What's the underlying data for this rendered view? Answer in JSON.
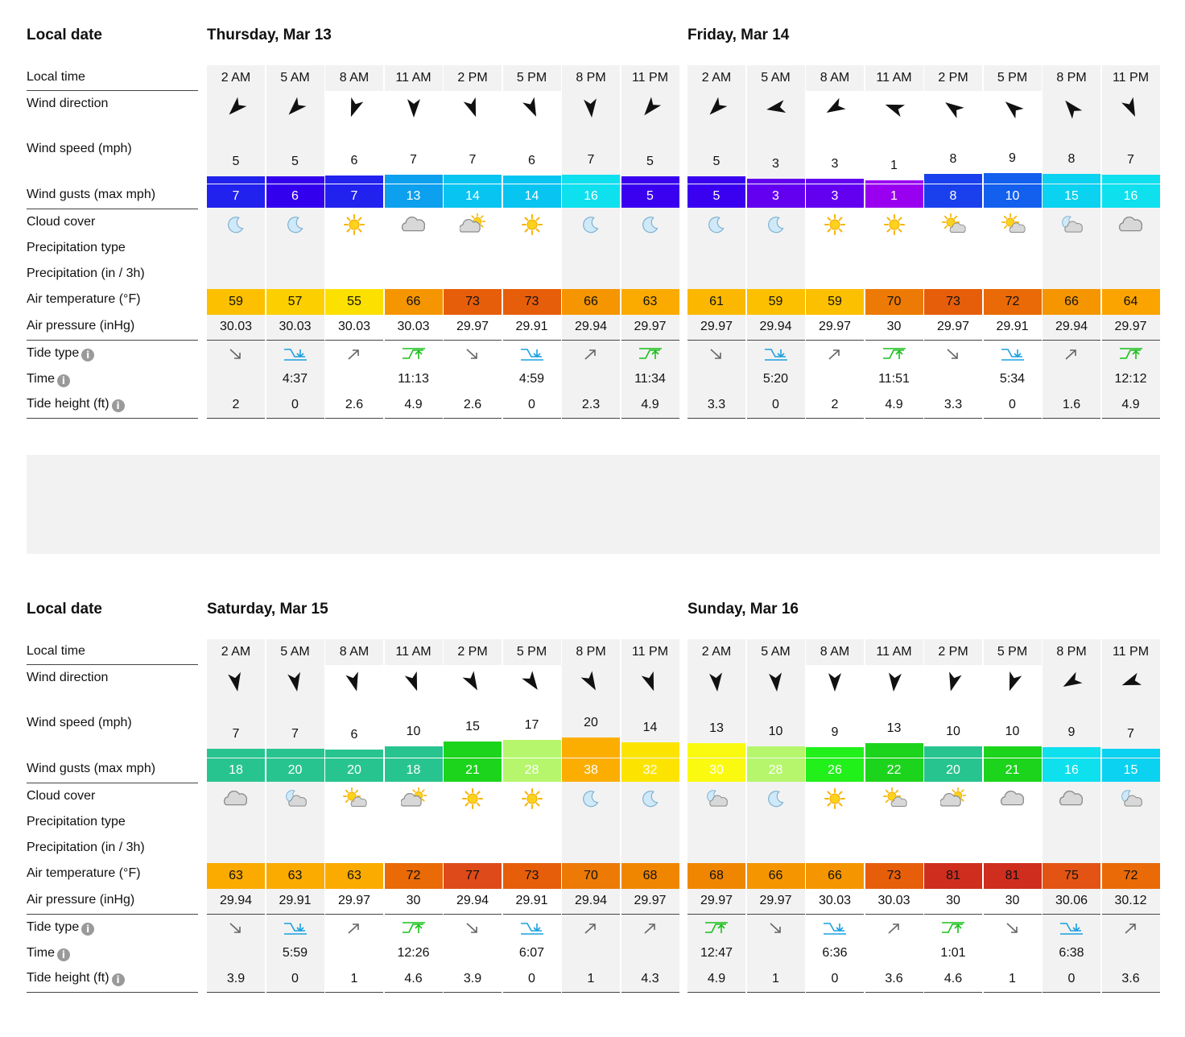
{
  "labels": {
    "local_date": "Local date",
    "local_time": "Local time",
    "wind_direction": "Wind direction",
    "wind_speed": "Wind speed (mph)",
    "wind_gusts": "Wind gusts (max mph)",
    "cloud_cover": "Cloud cover",
    "precip_type": "Precipitation type",
    "precip_amount": "Precipitation (in / 3h)",
    "air_temp": "Air temperature (°F)",
    "air_pressure": "Air pressure (inHg)",
    "tide_type": "Tide type",
    "tide_time": "Time",
    "tide_height": "Tide height (ft)",
    "info_glyph": "i"
  },
  "colors": {
    "gray_col": "#f2f2f2"
  },
  "days": [
    {
      "title": "Thursday, Mar 13",
      "hours": [
        {
          "time": "2 AM",
          "dir": 225,
          "speed": 5,
          "gust": "7",
          "gust_color": "#2222ee",
          "cloud": "moon",
          "temp": "59",
          "temp_color": "#fcc000",
          "pressure": "30.03",
          "tide": "down",
          "tide_time": "",
          "tide_height": "2",
          "gray": true
        },
        {
          "time": "5 AM",
          "dir": 225,
          "speed": 5,
          "gust": "6",
          "gust_color": "#3300ee",
          "cloud": "moon",
          "temp": "57",
          "temp_color": "#fcd000",
          "pressure": "30.03",
          "tide": "low",
          "tide_time": "4:37",
          "tide_height": "0",
          "gray": true
        },
        {
          "time": "8 AM",
          "dir": 200,
          "speed": 6,
          "gust": "7",
          "gust_color": "#2222ee",
          "cloud": "sun",
          "temp": "55",
          "temp_color": "#fce000",
          "pressure": "30.03",
          "tide": "up",
          "tide_time": "",
          "tide_height": "2.6",
          "gray": false
        },
        {
          "time": "11 AM",
          "dir": 180,
          "speed": 7,
          "gust": "13",
          "gust_color": "#0ca0ee",
          "cloud": "cloud",
          "temp": "66",
          "temp_color": "#f59500",
          "pressure": "30.03",
          "tide": "high",
          "tide_time": "11:13",
          "tide_height": "4.9",
          "gray": false
        },
        {
          "time": "2 PM",
          "dir": 160,
          "speed": 7,
          "gust": "14",
          "gust_color": "#08c4f0",
          "cloud": "cloudsun",
          "temp": "73",
          "temp_color": "#e65e0a",
          "pressure": "29.97",
          "tide": "down",
          "tide_time": "",
          "tide_height": "2.6",
          "gray": false
        },
        {
          "time": "5 PM",
          "dir": 155,
          "speed": 6,
          "gust": "14",
          "gust_color": "#08c4f0",
          "cloud": "sun",
          "temp": "73",
          "temp_color": "#e65e0a",
          "pressure": "29.91",
          "tide": "low",
          "tide_time": "4:59",
          "tide_height": "0",
          "gray": false
        },
        {
          "time": "8 PM",
          "dir": 175,
          "speed": 7,
          "gust": "16",
          "gust_color": "#0ee0ee",
          "cloud": "moon",
          "temp": "66",
          "temp_color": "#f59500",
          "pressure": "29.94",
          "tide": "up",
          "tide_time": "",
          "tide_height": "2.3",
          "gray": true
        },
        {
          "time": "11 PM",
          "dir": 220,
          "speed": 5,
          "gust": "5",
          "gust_color": "#3a00f0",
          "cloud": "moon",
          "temp": "63",
          "temp_color": "#fbaa00",
          "pressure": "29.97",
          "tide": "high",
          "tide_time": "11:34",
          "tide_height": "4.9",
          "gray": true
        }
      ]
    },
    {
      "title": "Friday, Mar 14",
      "hours": [
        {
          "time": "2 AM",
          "dir": 225,
          "speed": 5,
          "gust": "5",
          "gust_color": "#3a00f0",
          "cloud": "moon",
          "temp": "61",
          "temp_color": "#fcb800",
          "pressure": "29.97",
          "tide": "down",
          "tide_time": "",
          "tide_height": "3.3",
          "gray": true
        },
        {
          "time": "5 AM",
          "dir": 260,
          "speed": 3,
          "gust": "3",
          "gust_color": "#6400f0",
          "cloud": "moon",
          "temp": "59",
          "temp_color": "#fcc000",
          "pressure": "29.94",
          "tide": "low",
          "tide_time": "5:20",
          "tide_height": "0",
          "gray": true
        },
        {
          "time": "8 AM",
          "dir": 240,
          "speed": 3,
          "gust": "3",
          "gust_color": "#6400f0",
          "cloud": "sun",
          "temp": "59",
          "temp_color": "#fcc000",
          "pressure": "29.97",
          "tide": "up",
          "tide_time": "",
          "tide_height": "2",
          "gray": false
        },
        {
          "time": "11 AM",
          "dir": 290,
          "speed": 1,
          "gust": "1",
          "gust_color": "#9a00f0",
          "cloud": "sun",
          "temp": "70",
          "temp_color": "#ec7a04",
          "pressure": "30",
          "tide": "high",
          "tide_time": "11:51",
          "tide_height": "4.9",
          "gray": false
        },
        {
          "time": "2 PM",
          "dir": 305,
          "speed": 8,
          "gust": "8",
          "gust_color": "#1a40ee",
          "cloud": "suncloud",
          "temp": "73",
          "temp_color": "#e65e0a",
          "pressure": "29.97",
          "tide": "down",
          "tide_time": "",
          "tide_height": "3.3",
          "gray": false
        },
        {
          "time": "5 PM",
          "dir": 310,
          "speed": 9,
          "gust": "10",
          "gust_color": "#1460ee",
          "cloud": "suncloud",
          "temp": "72",
          "temp_color": "#e96a06",
          "pressure": "29.91",
          "tide": "low",
          "tide_time": "5:34",
          "tide_height": "0",
          "gray": false
        },
        {
          "time": "8 PM",
          "dir": 320,
          "speed": 8,
          "gust": "15",
          "gust_color": "#0ad2f0",
          "cloud": "mooncloud",
          "temp": "66",
          "temp_color": "#f59500",
          "pressure": "29.94",
          "tide": "up",
          "tide_time": "",
          "tide_height": "1.6",
          "gray": true
        },
        {
          "time": "11 PM",
          "dir": 155,
          "speed": 7,
          "gust": "16",
          "gust_color": "#0ee0ee",
          "cloud": "cloud",
          "temp": "64",
          "temp_color": "#fba400",
          "pressure": "29.97",
          "tide": "high",
          "tide_time": "12:12",
          "tide_height": "4.9",
          "gray": true
        }
      ]
    },
    {
      "title": "Saturday, Mar 15",
      "hours": [
        {
          "time": "2 AM",
          "dir": 170,
          "speed": 7,
          "gust": "18",
          "gust_color": "#28c490",
          "cloud": "cloud",
          "temp": "63",
          "temp_color": "#fbaa00",
          "pressure": "29.94",
          "tide": "down",
          "tide_time": "",
          "tide_height": "3.9",
          "gray": true
        },
        {
          "time": "5 AM",
          "dir": 170,
          "speed": 7,
          "gust": "20",
          "gust_color": "#28c490",
          "cloud": "mooncloud",
          "temp": "63",
          "temp_color": "#fbaa00",
          "pressure": "29.91",
          "tide": "low",
          "tide_time": "5:59",
          "tide_height": "0",
          "gray": true
        },
        {
          "time": "8 AM",
          "dir": 165,
          "speed": 6,
          "gust": "20",
          "gust_color": "#28c490",
          "cloud": "suncloud",
          "temp": "63",
          "temp_color": "#fbaa00",
          "pressure": "29.97",
          "tide": "up",
          "tide_time": "",
          "tide_height": "1",
          "gray": false
        },
        {
          "time": "11 AM",
          "dir": 160,
          "speed": 10,
          "gust": "18",
          "gust_color": "#28c490",
          "cloud": "cloudsun",
          "temp": "72",
          "temp_color": "#e96a06",
          "pressure": "30",
          "tide": "high",
          "tide_time": "12:26",
          "tide_height": "4.6",
          "gray": false
        },
        {
          "time": "2 PM",
          "dir": 150,
          "speed": 15,
          "gust": "21",
          "gust_color": "#1cd41c",
          "cloud": "sun",
          "temp": "77",
          "temp_color": "#df4a1a",
          "pressure": "29.94",
          "tide": "down",
          "tide_time": "",
          "tide_height": "3.9",
          "gray": false
        },
        {
          "time": "5 PM",
          "dir": 145,
          "speed": 17,
          "gust": "28",
          "gust_color": "#b6f66c",
          "cloud": "sun",
          "temp": "73",
          "temp_color": "#e65e0a",
          "pressure": "29.91",
          "tide": "low",
          "tide_time": "6:07",
          "tide_height": "0",
          "gray": false
        },
        {
          "time": "8 PM",
          "dir": 150,
          "speed": 20,
          "gust": "38",
          "gust_color": "#fcae00",
          "cloud": "moon",
          "temp": "70",
          "temp_color": "#ec7a04",
          "pressure": "29.94",
          "tide": "up",
          "tide_time": "",
          "tide_height": "1",
          "gray": true
        },
        {
          "time": "11 PM",
          "dir": 160,
          "speed": 14,
          "gust": "32",
          "gust_color": "#fce400",
          "cloud": "moon",
          "temp": "68",
          "temp_color": "#f08600",
          "pressure": "29.97",
          "tide": "up",
          "tide_time": "",
          "tide_height": "4.3",
          "gray": true
        }
      ]
    },
    {
      "title": "Sunday, Mar 16",
      "hours": [
        {
          "time": "2 AM",
          "dir": 175,
          "speed": 13,
          "gust": "30",
          "gust_color": "#fafa10",
          "cloud": "mooncloud",
          "temp": "68",
          "temp_color": "#f08600",
          "pressure": "29.97",
          "tide": "high",
          "tide_time": "12:47",
          "tide_height": "4.9",
          "gray": true
        },
        {
          "time": "5 AM",
          "dir": 175,
          "speed": 10,
          "gust": "28",
          "gust_color": "#b6f66c",
          "cloud": "moon",
          "temp": "66",
          "temp_color": "#f59500",
          "pressure": "29.97",
          "tide": "down",
          "tide_time": "",
          "tide_height": "1",
          "gray": true
        },
        {
          "time": "8 AM",
          "dir": 180,
          "speed": 9,
          "gust": "26",
          "gust_color": "#22f01a",
          "cloud": "sun",
          "temp": "66",
          "temp_color": "#f59500",
          "pressure": "30.03",
          "tide": "low",
          "tide_time": "6:36",
          "tide_height": "0",
          "gray": false
        },
        {
          "time": "11 AM",
          "dir": 185,
          "speed": 13,
          "gust": "22",
          "gust_color": "#1cd41c",
          "cloud": "suncloud",
          "temp": "73",
          "temp_color": "#e65e0a",
          "pressure": "30.03",
          "tide": "up",
          "tide_time": "",
          "tide_height": "3.6",
          "gray": false
        },
        {
          "time": "2 PM",
          "dir": 195,
          "speed": 10,
          "gust": "20",
          "gust_color": "#28c490",
          "cloud": "cloudsun",
          "temp": "81",
          "temp_color": "#cf2d1e",
          "pressure": "30",
          "tide": "high",
          "tide_time": "1:01",
          "tide_height": "4.6",
          "gray": false
        },
        {
          "time": "5 PM",
          "dir": 200,
          "speed": 10,
          "gust": "21",
          "gust_color": "#1cd41c",
          "cloud": "cloud",
          "temp": "81",
          "temp_color": "#cf2d1e",
          "pressure": "30",
          "tide": "down",
          "tide_time": "",
          "tide_height": "1",
          "gray": false
        },
        {
          "time": "8 PM",
          "dir": 240,
          "speed": 9,
          "gust": "16",
          "gust_color": "#0ee0ee",
          "cloud": "cloud",
          "temp": "75",
          "temp_color": "#e35414",
          "pressure": "30.06",
          "tide": "low",
          "tide_time": "6:38",
          "tide_height": "0",
          "gray": true
        },
        {
          "time": "11 PM",
          "dir": 250,
          "speed": 7,
          "gust": "15",
          "gust_color": "#0ad2f0",
          "cloud": "mooncloud",
          "temp": "72",
          "temp_color": "#e96a06",
          "pressure": "30.12",
          "tide": "up",
          "tide_time": "",
          "tide_height": "3.6",
          "gray": true
        }
      ]
    }
  ]
}
